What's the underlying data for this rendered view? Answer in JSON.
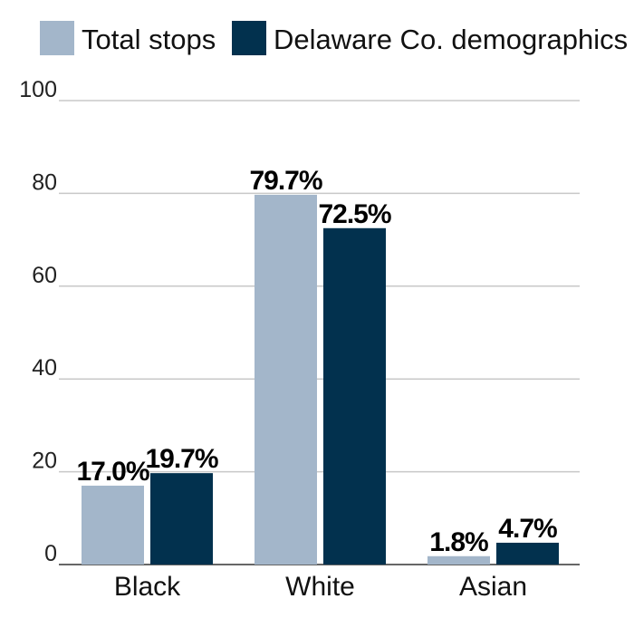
{
  "chart_data": {
    "type": "bar",
    "categories": [
      "Black",
      "White",
      "Asian"
    ],
    "series": [
      {
        "name": "Total stops",
        "values": [
          17.0,
          79.7,
          1.8
        ],
        "labels": [
          "17.0%",
          "79.7%",
          "1.8%"
        ],
        "color": "#a3b6ca"
      },
      {
        "name": "Delaware Co. demographics",
        "values": [
          19.7,
          72.5,
          4.7
        ],
        "labels": [
          "19.7%",
          "72.5%",
          "4.7%"
        ],
        "color": "#02314e"
      }
    ],
    "yticks": [
      "0",
      "20",
      "40",
      "60",
      "80",
      "100"
    ],
    "ylim": [
      0,
      100
    ],
    "grid": true,
    "legend_position": "top"
  }
}
